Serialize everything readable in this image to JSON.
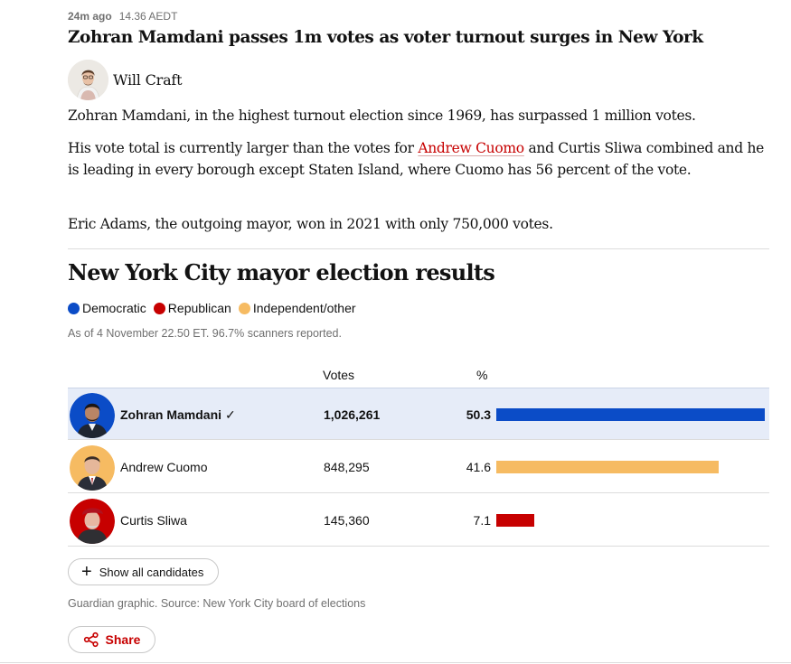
{
  "meta": {
    "ago": "24m ago",
    "time": "14.36 AEDT"
  },
  "headline": "Zohran Mamdani passes 1m votes as voter turnout surges in New York",
  "byline": {
    "name": "Will Craft"
  },
  "body": {
    "p1": "Zohran Mamdani, in the highest turnout election since 1969, has surpassed 1 million votes.",
    "p2_before": "His vote total is currently larger than the votes for ",
    "p2_link": "Andrew Cuomo",
    "p2_after": " and Curtis Sliwa combined and he is leading in every borough except Staten Island, where Cuomo has 56 percent of the vote.",
    "p3": "Eric Adams, the outgoing mayor, won in 2021 with only 750,000 votes."
  },
  "graphic": {
    "title": "New York City mayor election results",
    "legend": [
      {
        "label": "Democratic",
        "color": "#0b4cc7"
      },
      {
        "label": "Republican",
        "color": "#c70000"
      },
      {
        "label": "Independent/other",
        "color": "#f6bb62"
      }
    ],
    "note": "As of 4 November 22.50 ET. 96.7% scanners reported.",
    "col_votes": "Votes",
    "col_pct": "%",
    "candidates": [
      {
        "name": "Zohran Mamdani",
        "winner_mark": "✓",
        "votes": "1,026,261",
        "pct": "50.3",
        "pct_value": 50.3,
        "party_color": "#0b4cc7"
      },
      {
        "name": "Andrew Cuomo",
        "votes": "848,295",
        "pct": "41.6",
        "pct_value": 41.6,
        "party_color": "#f6bb62"
      },
      {
        "name": "Curtis Sliwa",
        "votes": "145,360",
        "pct": "7.1",
        "pct_value": 7.1,
        "party_color": "#c70000"
      }
    ],
    "show_all_label": "Show all candidates",
    "source": "Guardian graphic. Source: New York City board of elections"
  },
  "share_label": "Share",
  "chart_data": {
    "type": "bar",
    "categories": [
      "Zohran Mamdani",
      "Andrew Cuomo",
      "Curtis Sliwa"
    ],
    "series": [
      {
        "name": "%",
        "values": [
          50.3,
          41.6,
          7.1
        ]
      }
    ],
    "votes": [
      1026261,
      848295,
      145360
    ],
    "title": "New York City mayor election results",
    "colors": [
      "#0b4cc7",
      "#f6bb62",
      "#c70000"
    ]
  }
}
